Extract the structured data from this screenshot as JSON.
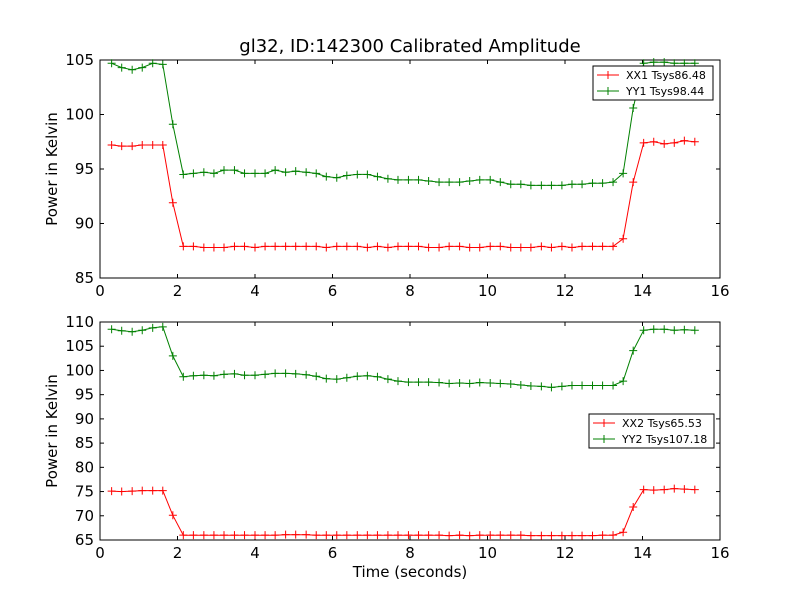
{
  "chart_data": [
    {
      "type": "line",
      "title": "gl32, ID:142300 Calibrated Amplitude",
      "xlabel": "",
      "ylabel": "Power in Kelvin",
      "xlim": [
        0,
        16
      ],
      "ylim": [
        85,
        105
      ],
      "xticks": [
        "0",
        "2",
        "4",
        "6",
        "8",
        "10",
        "12",
        "14",
        "16"
      ],
      "yticks": [
        "85",
        "90",
        "95",
        "100",
        "105"
      ],
      "legend_position": "top-right",
      "x": [
        0.3,
        0.56,
        0.83,
        1.09,
        1.36,
        1.62,
        1.88,
        2.15,
        2.41,
        2.68,
        2.94,
        3.2,
        3.47,
        3.73,
        4.0,
        4.26,
        4.52,
        4.79,
        5.05,
        5.32,
        5.58,
        5.84,
        6.11,
        6.37,
        6.64,
        6.9,
        7.16,
        7.43,
        7.69,
        7.96,
        8.22,
        8.48,
        8.75,
        9.01,
        9.28,
        9.54,
        9.8,
        10.07,
        10.33,
        10.6,
        10.86,
        11.12,
        11.39,
        11.65,
        11.92,
        12.18,
        12.44,
        12.71,
        12.97,
        13.24,
        13.5,
        13.76,
        14.03,
        14.29,
        14.56,
        14.82,
        15.08,
        15.35
      ],
      "series": [
        {
          "name": "XX1 Tsys86.48",
          "color": "#ff0000",
          "values": [
            97.2,
            97.1,
            97.1,
            97.2,
            97.2,
            97.2,
            91.9,
            87.9,
            87.9,
            87.8,
            87.8,
            87.8,
            87.9,
            87.9,
            87.8,
            87.9,
            87.9,
            87.9,
            87.9,
            87.9,
            87.9,
            87.8,
            87.9,
            87.9,
            87.9,
            87.8,
            87.9,
            87.8,
            87.9,
            87.9,
            87.9,
            87.8,
            87.8,
            87.9,
            87.9,
            87.8,
            87.8,
            87.9,
            87.9,
            87.8,
            87.8,
            87.8,
            87.9,
            87.8,
            87.9,
            87.8,
            87.9,
            87.9,
            87.9,
            87.9,
            88.6,
            93.8,
            97.4,
            97.5,
            97.3,
            97.4,
            97.6,
            97.5
          ]
        },
        {
          "name": "YY1 Tsys98.44",
          "color": "#008000",
          "values": [
            104.7,
            104.3,
            104.1,
            104.3,
            104.7,
            104.6,
            99.1,
            94.5,
            94.6,
            94.7,
            94.6,
            94.9,
            94.9,
            94.6,
            94.6,
            94.6,
            94.9,
            94.7,
            94.8,
            94.7,
            94.6,
            94.3,
            94.2,
            94.4,
            94.5,
            94.5,
            94.3,
            94.1,
            94.0,
            94.0,
            94.0,
            93.9,
            93.8,
            93.8,
            93.8,
            93.9,
            94.0,
            94.0,
            93.8,
            93.6,
            93.6,
            93.5,
            93.5,
            93.5,
            93.5,
            93.6,
            93.6,
            93.7,
            93.7,
            93.8,
            94.6,
            100.6,
            104.7,
            104.8,
            104.8,
            104.7,
            104.7,
            104.7
          ]
        }
      ]
    },
    {
      "type": "line",
      "title": "",
      "xlabel": "Time (seconds)",
      "ylabel": "Power in Kelvin",
      "xlim": [
        0,
        16
      ],
      "ylim": [
        65,
        110
      ],
      "xticks": [
        "0",
        "2",
        "4",
        "6",
        "8",
        "10",
        "12",
        "14",
        "16"
      ],
      "yticks": [
        "65",
        "70",
        "75",
        "80",
        "85",
        "90",
        "95",
        "100",
        "105",
        "110"
      ],
      "legend_position": "center-right",
      "x": [
        0.3,
        0.56,
        0.83,
        1.09,
        1.36,
        1.62,
        1.88,
        2.15,
        2.41,
        2.68,
        2.94,
        3.2,
        3.47,
        3.73,
        4.0,
        4.26,
        4.52,
        4.79,
        5.05,
        5.32,
        5.58,
        5.84,
        6.11,
        6.37,
        6.64,
        6.9,
        7.16,
        7.43,
        7.69,
        7.96,
        8.22,
        8.48,
        8.75,
        9.01,
        9.28,
        9.54,
        9.8,
        10.07,
        10.33,
        10.6,
        10.86,
        11.12,
        11.39,
        11.65,
        11.92,
        12.18,
        12.44,
        12.71,
        12.97,
        13.24,
        13.5,
        13.76,
        14.03,
        14.29,
        14.56,
        14.82,
        15.08,
        15.35
      ],
      "series": [
        {
          "name": "XX2 Tsys65.53",
          "color": "#ff0000",
          "values": [
            75.1,
            75.0,
            75.1,
            75.2,
            75.2,
            75.2,
            70.1,
            66.0,
            66.0,
            66.0,
            66.0,
            66.0,
            66.0,
            66.0,
            66.0,
            66.0,
            66.0,
            66.1,
            66.1,
            66.1,
            66.0,
            66.0,
            66.0,
            66.0,
            66.0,
            66.0,
            66.0,
            66.0,
            66.0,
            66.0,
            66.0,
            66.0,
            66.0,
            65.9,
            66.0,
            65.9,
            66.0,
            66.0,
            66.0,
            66.0,
            66.0,
            65.9,
            65.9,
            65.9,
            65.9,
            65.9,
            65.9,
            65.9,
            66.0,
            66.0,
            66.6,
            71.8,
            75.4,
            75.3,
            75.4,
            75.6,
            75.5,
            75.4
          ]
        },
        {
          "name": "YY2 Tsys107.18",
          "color": "#008000",
          "values": [
            108.5,
            108.2,
            108.0,
            108.3,
            108.8,
            109.0,
            103.0,
            98.7,
            98.9,
            99.0,
            98.9,
            99.2,
            99.3,
            99.0,
            99.0,
            99.2,
            99.4,
            99.4,
            99.3,
            99.1,
            98.8,
            98.3,
            98.2,
            98.5,
            98.8,
            98.9,
            98.7,
            98.2,
            97.8,
            97.6,
            97.6,
            97.6,
            97.5,
            97.3,
            97.4,
            97.3,
            97.5,
            97.4,
            97.3,
            97.2,
            97.0,
            96.8,
            96.7,
            96.5,
            96.7,
            96.9,
            96.9,
            96.9,
            96.9,
            96.9,
            97.8,
            104.1,
            108.3,
            108.5,
            108.5,
            108.3,
            108.4,
            108.3
          ]
        }
      ]
    }
  ]
}
